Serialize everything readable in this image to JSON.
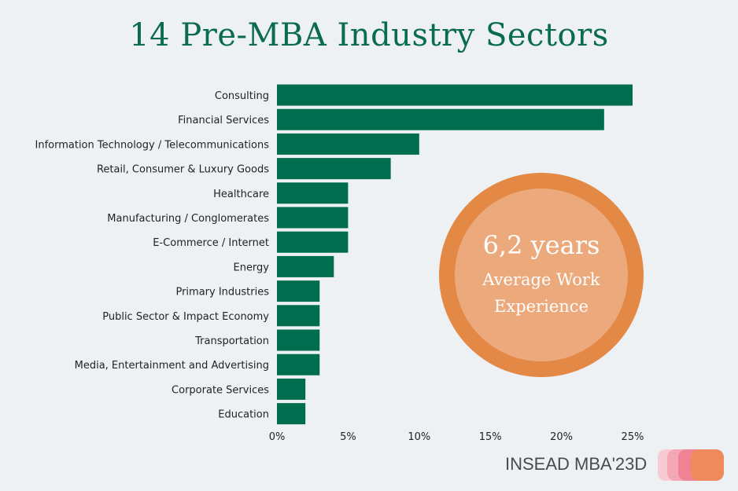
{
  "title": "14 Pre-MBA Industry Sectors",
  "chart_data": {
    "type": "bar",
    "orientation": "horizontal",
    "title": "14 Pre-MBA Industry Sectors",
    "categories": [
      "Consulting",
      "Financial Services",
      "Information Technology / Telecommunications",
      "Retail, Consumer & Luxury Goods",
      "Healthcare",
      "Manufacturing / Conglomerates",
      "E-Commerce / Internet",
      "Energy",
      "Primary Industries",
      "Public Sector & Impact Economy",
      "Transportation",
      "Media, Entertainment and Advertising",
      "Corporate Services",
      "Education"
    ],
    "values": [
      25,
      23,
      10,
      8,
      5,
      5,
      5,
      4,
      3,
      3,
      3,
      3,
      2,
      2
    ],
    "xlim": [
      0,
      25
    ],
    "x_ticks": [
      0,
      5,
      10,
      15,
      20,
      25
    ],
    "x_tick_labels": [
      "0%",
      "5%",
      "10%",
      "15%",
      "20%",
      "25%"
    ],
    "bar_color": "#006d4f",
    "grid": false
  },
  "highlight": {
    "value": "6,2 years",
    "line1": "Average Work",
    "line2": "Experience",
    "ring_color": "#e48845",
    "fill_color": "#eca97c"
  },
  "footer": {
    "text": "INSEAD MBA'23D"
  }
}
